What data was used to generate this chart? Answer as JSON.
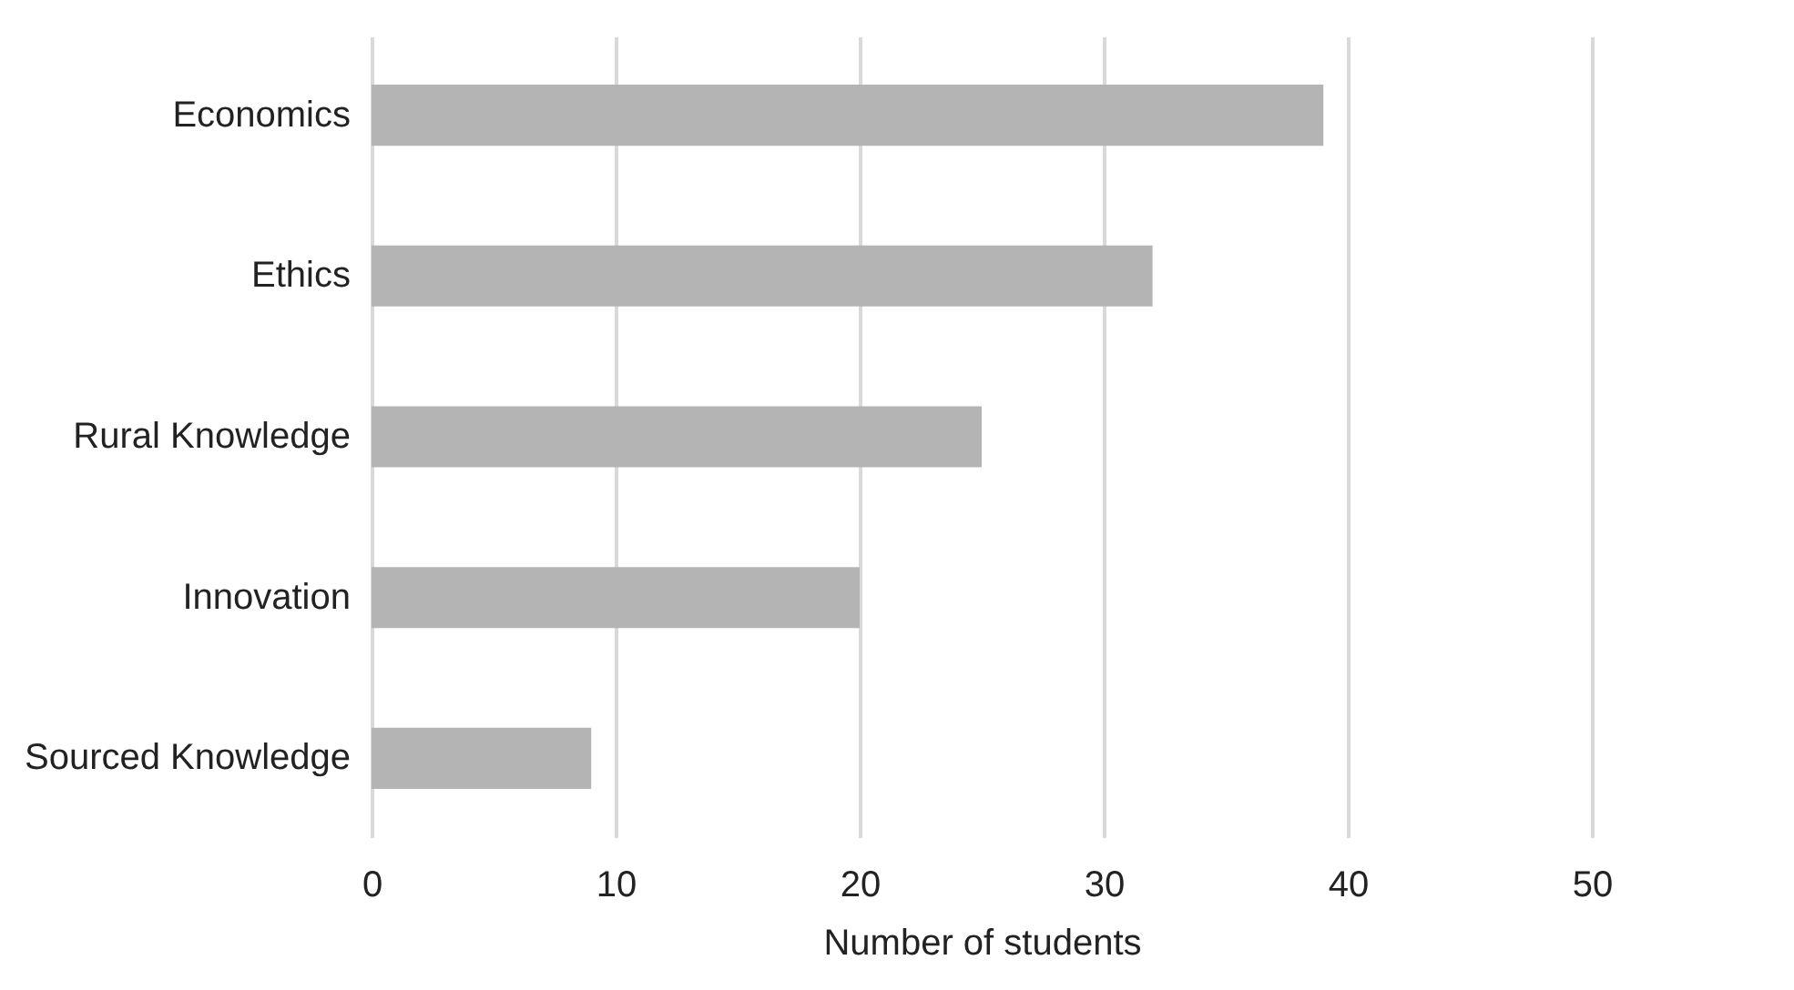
{
  "chart_data": {
    "type": "bar",
    "orientation": "horizontal",
    "xlabel": "Number of students",
    "categories": [
      "Economics",
      "Ethics",
      "Rural Knowledge",
      "Innovation",
      "Sourced Knowledge"
    ],
    "values": [
      39,
      32,
      25,
      20,
      9
    ],
    "color": "#b4b4b4",
    "xlim": [
      0,
      50
    ],
    "xticks": [
      0,
      10,
      20,
      30,
      40,
      50
    ],
    "grid": "x"
  }
}
